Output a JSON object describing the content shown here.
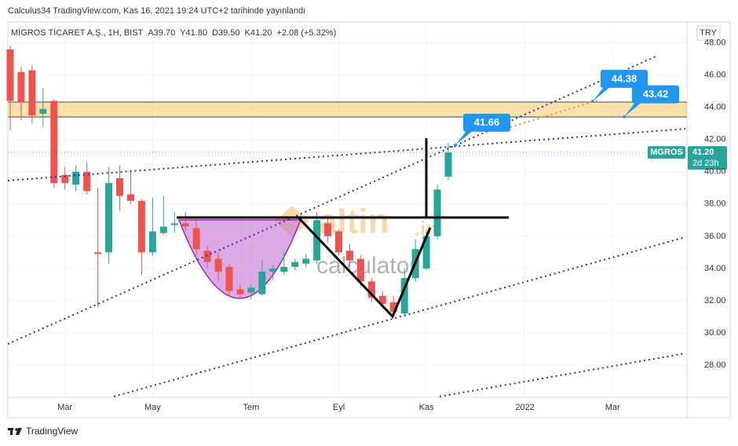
{
  "header": {
    "published": "Calculus34 TradingView.com, Kas 16, 2021 19:24 UTC+2 tarihinde yayınlandı",
    "symbol": "MİGROS TİCARET A.Ş., 1H, BIST",
    "ohlc": [
      [
        "A",
        "39.70"
      ],
      [
        "Y",
        "41.80"
      ],
      [
        "D",
        "39.50"
      ],
      [
        "K",
        "41.20"
      ]
    ],
    "change": "+2.08 (+5.32%)",
    "currency": "TRY"
  },
  "watermark": {
    "logo": "altin",
    "domain": ".in",
    "subtitle": "calculator"
  },
  "footer": {
    "brand": "TradingView"
  },
  "chart_data": {
    "type": "candlestick",
    "categories": [
      null,
      null,
      null,
      null,
      null,
      "Mar",
      null,
      null,
      null,
      null,
      null,
      null,
      null,
      "May",
      null,
      null,
      null,
      null,
      null,
      null,
      null,
      null,
      "Tem",
      null,
      null,
      null,
      null,
      null,
      null,
      null,
      "Eyl",
      null,
      null,
      null,
      null,
      null,
      null,
      null,
      "Kas",
      null,
      null,
      null,
      null,
      null,
      null,
      null,
      null,
      "2022",
      null,
      null,
      null,
      null,
      null,
      null,
      null,
      "Mar",
      null,
      null,
      null,
      null,
      null,
      null
    ],
    "open": [
      47.6,
      46.2,
      46.3,
      43.6,
      44.4,
      39.8,
      39.2,
      40.0,
      35.0,
      35.0,
      39.6,
      38.6,
      38.2,
      35.0,
      36.2,
      36.7,
      36.8,
      36.5,
      35.1,
      34.6,
      34.1,
      32.7,
      32.5,
      32.4,
      33.8,
      33.8,
      34.1,
      34.3,
      34.5,
      36.8,
      36.3,
      35.1,
      34.6,
      33.2,
      32.3,
      31.9,
      31.2,
      33.4,
      34.0,
      36.0,
      39.7,
      null,
      null,
      null,
      null,
      null,
      null,
      null,
      null,
      null,
      null,
      null,
      null,
      null,
      null,
      null,
      null,
      null,
      null,
      null,
      null,
      null
    ],
    "high": [
      47.8,
      46.5,
      46.6,
      45.2,
      44.5,
      40.3,
      40.4,
      40.6,
      39.0,
      40.3,
      40.4,
      40.0,
      38.3,
      38.4,
      38.5,
      37.5,
      37.5,
      37.2,
      35.4,
      35.0,
      34.3,
      33.0,
      33.0,
      34.5,
      34.2,
      35.0,
      34.6,
      34.9,
      37.5,
      37.1,
      36.4,
      35.5,
      34.8,
      33.4,
      32.6,
      32.3,
      34.0,
      35.8,
      36.4,
      39.2,
      41.8,
      null,
      null,
      null,
      null,
      null,
      null,
      null,
      null,
      null,
      null,
      null,
      null,
      null,
      null,
      null,
      null,
      null,
      null,
      null,
      null,
      null
    ],
    "low": [
      42.6,
      43.2,
      43.0,
      42.8,
      39.0,
      38.9,
      38.8,
      38.6,
      31.6,
      34.3,
      37.6,
      38.0,
      33.6,
      34.8,
      36.1,
      36.2,
      36.3,
      34.8,
      34.0,
      33.2,
      32.3,
      32.1,
      32.1,
      32.3,
      33.3,
      33.6,
      33.9,
      34.1,
      34.3,
      35.6,
      34.8,
      34.1,
      32.9,
      31.9,
      31.5,
      31.1,
      31.0,
      33.2,
      33.9,
      35.8,
      39.5,
      null,
      null,
      null,
      null,
      null,
      null,
      null,
      null,
      null,
      null,
      null,
      null,
      null,
      null,
      null,
      null,
      null,
      null,
      null,
      null,
      null
    ],
    "close": [
      44.4,
      44.3,
      43.5,
      43.9,
      39.3,
      39.3,
      40.0,
      38.8,
      34.9,
      39.3,
      38.5,
      38.2,
      35.0,
      36.3,
      36.6,
      36.8,
      36.6,
      35.2,
      34.4,
      33.8,
      32.6,
      32.4,
      32.8,
      33.8,
      34.0,
      34.1,
      34.4,
      34.6,
      37.0,
      36.0,
      35.0,
      34.5,
      33.2,
      32.2,
      31.8,
      31.3,
      33.4,
      35.2,
      36.0,
      38.9,
      41.2,
      null,
      null,
      null,
      null,
      null,
      null,
      null,
      null,
      null,
      null,
      null,
      null,
      null,
      null,
      null,
      null,
      null,
      null,
      null,
      null,
      null
    ],
    "up_color": "#26a69a",
    "down_color": "#ef5350",
    "ylim": [
      26,
      49.3
    ],
    "yticks": [
      {
        "value": 28,
        "label": "28.00"
      },
      {
        "value": 30,
        "label": "30.00"
      },
      {
        "value": 32,
        "label": "32.00"
      },
      {
        "value": 34,
        "label": "34.00"
      },
      {
        "value": 36,
        "label": "36.00"
      },
      {
        "value": 38,
        "label": "38.00"
      },
      {
        "value": 40,
        "label": "40.00"
      },
      {
        "value": 42,
        "label": "42.00"
      },
      {
        "value": 44,
        "label": "44.00"
      },
      {
        "value": 46,
        "label": "46.00"
      },
      {
        "value": 48,
        "label": "48.00"
      }
    ],
    "grid": true,
    "annotations": [
      {
        "value": 44.38,
        "label": "44.38"
      },
      {
        "value": 43.42,
        "label": "43.42"
      },
      {
        "value": 41.66,
        "label": "41.66"
      }
    ],
    "last_price": {
      "symbol": "MGROS",
      "value": 41.2,
      "label": "41.20",
      "countdown": "2d 23h"
    }
  }
}
